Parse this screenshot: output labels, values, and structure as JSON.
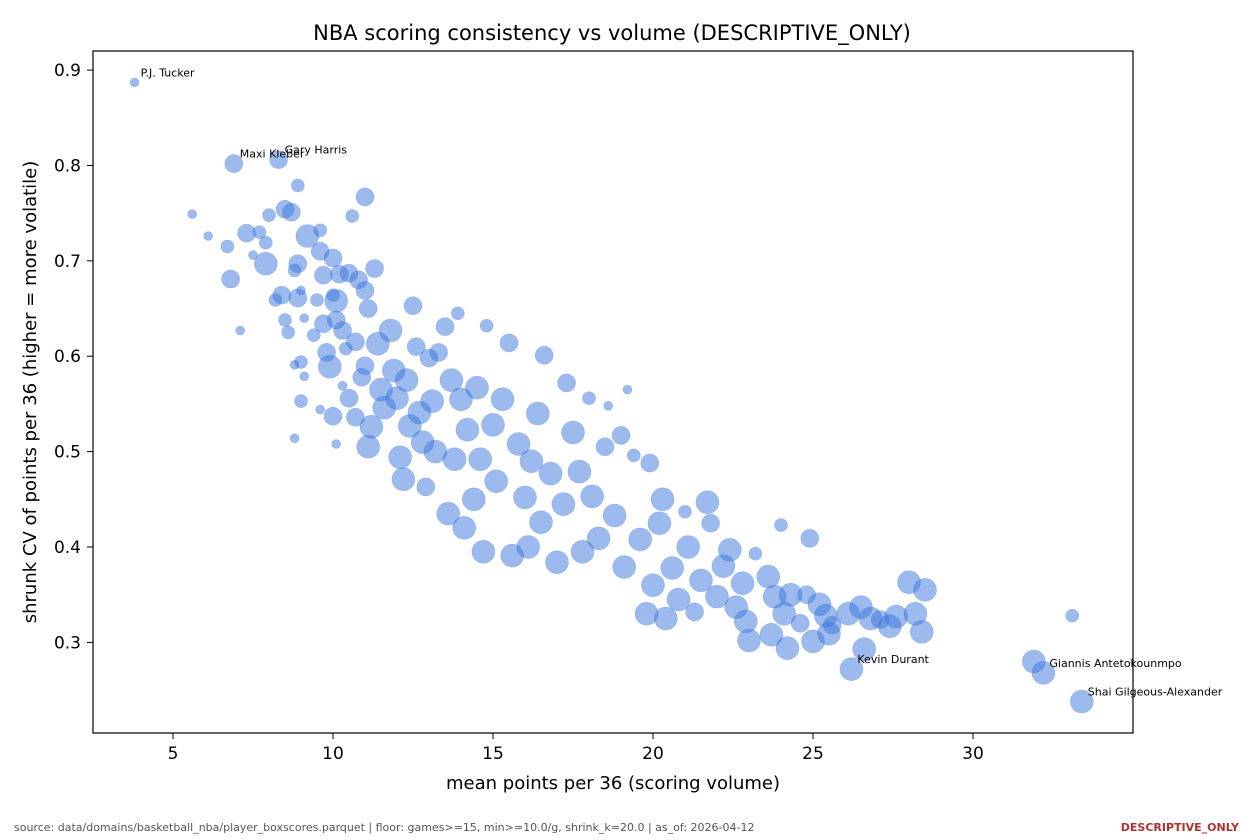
{
  "chart_data": {
    "type": "scatter",
    "title": "NBA scoring consistency vs volume (DESCRIPTIVE_ONLY)",
    "xlabel": "mean points per 36 (scoring volume)",
    "ylabel": "shrunk CV of points per 36 (higher = more volatile)",
    "xlim": [
      2.5,
      35
    ],
    "ylim": [
      0.205,
      0.92
    ],
    "xticks": [
      5,
      10,
      15,
      20,
      25,
      30
    ],
    "yticks": [
      0.3,
      0.4,
      0.5,
      0.6,
      0.7,
      0.8,
      0.9
    ],
    "grid": false,
    "marker_color": "#3a76db",
    "size_encodes": "marker area (unlabeled)",
    "points": [
      {
        "x": 3.8,
        "y": 0.887,
        "s": 1,
        "label": "P.J. Tucker"
      },
      {
        "x": 6.9,
        "y": 0.802,
        "s": 3,
        "label": "Maxi Kleber"
      },
      {
        "x": 8.3,
        "y": 0.806,
        "s": 3,
        "label": "Gary Harris"
      },
      {
        "x": 26.2,
        "y": 0.272,
        "s": 4,
        "label": "Kevin Durant"
      },
      {
        "x": 31.9,
        "y": 0.28,
        "s": 4,
        "label": ""
      },
      {
        "x": 32.2,
        "y": 0.268,
        "s": 4,
        "label": "Giannis Antetokounmpo"
      },
      {
        "x": 33.4,
        "y": 0.238,
        "s": 4,
        "label": "Shai Gilgeous-Alexander"
      },
      {
        "x": 33.1,
        "y": 0.328,
        "s": 2,
        "label": ""
      },
      {
        "x": 5.6,
        "y": 0.749,
        "s": 1,
        "label": ""
      },
      {
        "x": 6.1,
        "y": 0.726,
        "s": 1,
        "label": ""
      },
      {
        "x": 6.7,
        "y": 0.715,
        "s": 2,
        "label": ""
      },
      {
        "x": 6.8,
        "y": 0.681,
        "s": 3,
        "label": ""
      },
      {
        "x": 7.1,
        "y": 0.627,
        "s": 1,
        "label": ""
      },
      {
        "x": 7.3,
        "y": 0.729,
        "s": 3,
        "label": ""
      },
      {
        "x": 7.5,
        "y": 0.706,
        "s": 1,
        "label": ""
      },
      {
        "x": 7.7,
        "y": 0.73,
        "s": 2,
        "label": ""
      },
      {
        "x": 7.9,
        "y": 0.719,
        "s": 2,
        "label": ""
      },
      {
        "x": 8.0,
        "y": 0.748,
        "s": 2,
        "label": ""
      },
      {
        "x": 7.9,
        "y": 0.697,
        "s": 4,
        "label": ""
      },
      {
        "x": 8.2,
        "y": 0.659,
        "s": 2,
        "label": ""
      },
      {
        "x": 8.4,
        "y": 0.664,
        "s": 3,
        "label": ""
      },
      {
        "x": 8.5,
        "y": 0.754,
        "s": 3,
        "label": ""
      },
      {
        "x": 8.5,
        "y": 0.638,
        "s": 2,
        "label": ""
      },
      {
        "x": 8.6,
        "y": 0.625,
        "s": 2,
        "label": ""
      },
      {
        "x": 8.7,
        "y": 0.751,
        "s": 3,
        "label": ""
      },
      {
        "x": 8.8,
        "y": 0.69,
        "s": 2,
        "label": ""
      },
      {
        "x": 8.9,
        "y": 0.779,
        "s": 2,
        "label": ""
      },
      {
        "x": 8.9,
        "y": 0.697,
        "s": 3,
        "label": ""
      },
      {
        "x": 8.9,
        "y": 0.661,
        "s": 3,
        "label": ""
      },
      {
        "x": 9.0,
        "y": 0.669,
        "s": 1,
        "label": ""
      },
      {
        "x": 8.8,
        "y": 0.591,
        "s": 1,
        "label": ""
      },
      {
        "x": 9.0,
        "y": 0.594,
        "s": 2,
        "label": ""
      },
      {
        "x": 9.1,
        "y": 0.579,
        "s": 1,
        "label": ""
      },
      {
        "x": 9.1,
        "y": 0.64,
        "s": 1,
        "label": ""
      },
      {
        "x": 9.2,
        "y": 0.726,
        "s": 4,
        "label": ""
      },
      {
        "x": 9.0,
        "y": 0.553,
        "s": 2,
        "label": ""
      },
      {
        "x": 8.8,
        "y": 0.514,
        "s": 1,
        "label": ""
      },
      {
        "x": 9.4,
        "y": 0.622,
        "s": 2,
        "label": ""
      },
      {
        "x": 9.5,
        "y": 0.659,
        "s": 2,
        "label": ""
      },
      {
        "x": 9.6,
        "y": 0.732,
        "s": 2,
        "label": ""
      },
      {
        "x": 9.6,
        "y": 0.71,
        "s": 3,
        "label": ""
      },
      {
        "x": 9.7,
        "y": 0.685,
        "s": 3,
        "label": ""
      },
      {
        "x": 9.6,
        "y": 0.544,
        "s": 1,
        "label": ""
      },
      {
        "x": 9.7,
        "y": 0.634,
        "s": 3,
        "label": ""
      },
      {
        "x": 9.8,
        "y": 0.604,
        "s": 3,
        "label": ""
      },
      {
        "x": 9.9,
        "y": 0.589,
        "s": 4,
        "label": ""
      },
      {
        "x": 10.0,
        "y": 0.703,
        "s": 3,
        "label": ""
      },
      {
        "x": 10.0,
        "y": 0.664,
        "s": 2,
        "label": ""
      },
      {
        "x": 10.0,
        "y": 0.537,
        "s": 3,
        "label": ""
      },
      {
        "x": 10.1,
        "y": 0.658,
        "s": 4,
        "label": ""
      },
      {
        "x": 10.1,
        "y": 0.638,
        "s": 3,
        "label": ""
      },
      {
        "x": 10.1,
        "y": 0.508,
        "s": 1,
        "label": ""
      },
      {
        "x": 10.2,
        "y": 0.686,
        "s": 3,
        "label": ""
      },
      {
        "x": 10.3,
        "y": 0.627,
        "s": 3,
        "label": ""
      },
      {
        "x": 10.3,
        "y": 0.569,
        "s": 1,
        "label": ""
      },
      {
        "x": 10.4,
        "y": 0.608,
        "s": 2,
        "label": ""
      },
      {
        "x": 10.5,
        "y": 0.687,
        "s": 3,
        "label": ""
      },
      {
        "x": 10.6,
        "y": 0.747,
        "s": 2,
        "label": ""
      },
      {
        "x": 10.5,
        "y": 0.556,
        "s": 3,
        "label": ""
      },
      {
        "x": 10.7,
        "y": 0.615,
        "s": 3,
        "label": ""
      },
      {
        "x": 10.8,
        "y": 0.68,
        "s": 3,
        "label": ""
      },
      {
        "x": 10.7,
        "y": 0.536,
        "s": 3,
        "label": ""
      },
      {
        "x": 10.9,
        "y": 0.578,
        "s": 3,
        "label": ""
      },
      {
        "x": 11.0,
        "y": 0.767,
        "s": 3,
        "label": ""
      },
      {
        "x": 11.0,
        "y": 0.669,
        "s": 3,
        "label": ""
      },
      {
        "x": 11.1,
        "y": 0.65,
        "s": 3,
        "label": ""
      },
      {
        "x": 11.0,
        "y": 0.59,
        "s": 3,
        "label": ""
      },
      {
        "x": 11.2,
        "y": 0.526,
        "s": 4,
        "label": ""
      },
      {
        "x": 11.1,
        "y": 0.505,
        "s": 4,
        "label": ""
      },
      {
        "x": 11.3,
        "y": 0.692,
        "s": 3,
        "label": ""
      },
      {
        "x": 11.4,
        "y": 0.613,
        "s": 4,
        "label": ""
      },
      {
        "x": 11.5,
        "y": 0.565,
        "s": 4,
        "label": ""
      },
      {
        "x": 11.6,
        "y": 0.546,
        "s": 4,
        "label": ""
      },
      {
        "x": 11.8,
        "y": 0.627,
        "s": 4,
        "label": ""
      },
      {
        "x": 11.9,
        "y": 0.585,
        "s": 4,
        "label": ""
      },
      {
        "x": 12.0,
        "y": 0.556,
        "s": 4,
        "label": ""
      },
      {
        "x": 12.1,
        "y": 0.494,
        "s": 4,
        "label": ""
      },
      {
        "x": 12.2,
        "y": 0.471,
        "s": 4,
        "label": ""
      },
      {
        "x": 12.3,
        "y": 0.575,
        "s": 4,
        "label": ""
      },
      {
        "x": 12.4,
        "y": 0.527,
        "s": 4,
        "label": ""
      },
      {
        "x": 12.5,
        "y": 0.653,
        "s": 3,
        "label": ""
      },
      {
        "x": 12.6,
        "y": 0.61,
        "s": 3,
        "label": ""
      },
      {
        "x": 12.7,
        "y": 0.541,
        "s": 4,
        "label": ""
      },
      {
        "x": 12.8,
        "y": 0.51,
        "s": 4,
        "label": ""
      },
      {
        "x": 12.9,
        "y": 0.463,
        "s": 3,
        "label": ""
      },
      {
        "x": 13.0,
        "y": 0.598,
        "s": 3,
        "label": ""
      },
      {
        "x": 13.1,
        "y": 0.553,
        "s": 4,
        "label": ""
      },
      {
        "x": 13.2,
        "y": 0.5,
        "s": 4,
        "label": ""
      },
      {
        "x": 13.3,
        "y": 0.604,
        "s": 3,
        "label": ""
      },
      {
        "x": 13.5,
        "y": 0.631,
        "s": 3,
        "label": ""
      },
      {
        "x": 13.6,
        "y": 0.435,
        "s": 4,
        "label": ""
      },
      {
        "x": 13.7,
        "y": 0.575,
        "s": 4,
        "label": ""
      },
      {
        "x": 13.8,
        "y": 0.492,
        "s": 4,
        "label": ""
      },
      {
        "x": 13.9,
        "y": 0.645,
        "s": 2,
        "label": ""
      },
      {
        "x": 14.0,
        "y": 0.555,
        "s": 4,
        "label": ""
      },
      {
        "x": 14.1,
        "y": 0.42,
        "s": 4,
        "label": ""
      },
      {
        "x": 14.2,
        "y": 0.523,
        "s": 4,
        "label": ""
      },
      {
        "x": 14.4,
        "y": 0.45,
        "s": 4,
        "label": ""
      },
      {
        "x": 14.5,
        "y": 0.567,
        "s": 4,
        "label": ""
      },
      {
        "x": 14.6,
        "y": 0.492,
        "s": 4,
        "label": ""
      },
      {
        "x": 14.7,
        "y": 0.395,
        "s": 4,
        "label": ""
      },
      {
        "x": 14.8,
        "y": 0.632,
        "s": 2,
        "label": ""
      },
      {
        "x": 15.0,
        "y": 0.528,
        "s": 4,
        "label": ""
      },
      {
        "x": 15.1,
        "y": 0.469,
        "s": 4,
        "label": ""
      },
      {
        "x": 15.3,
        "y": 0.555,
        "s": 4,
        "label": ""
      },
      {
        "x": 15.5,
        "y": 0.614,
        "s": 3,
        "label": ""
      },
      {
        "x": 15.6,
        "y": 0.391,
        "s": 4,
        "label": ""
      },
      {
        "x": 15.8,
        "y": 0.508,
        "s": 4,
        "label": ""
      },
      {
        "x": 16.0,
        "y": 0.452,
        "s": 4,
        "label": ""
      },
      {
        "x": 16.1,
        "y": 0.4,
        "s": 4,
        "label": ""
      },
      {
        "x": 16.2,
        "y": 0.49,
        "s": 4,
        "label": ""
      },
      {
        "x": 16.4,
        "y": 0.54,
        "s": 4,
        "label": ""
      },
      {
        "x": 16.5,
        "y": 0.426,
        "s": 4,
        "label": ""
      },
      {
        "x": 16.6,
        "y": 0.601,
        "s": 3,
        "label": ""
      },
      {
        "x": 16.8,
        "y": 0.477,
        "s": 4,
        "label": ""
      },
      {
        "x": 17.0,
        "y": 0.384,
        "s": 4,
        "label": ""
      },
      {
        "x": 17.2,
        "y": 0.445,
        "s": 4,
        "label": ""
      },
      {
        "x": 17.3,
        "y": 0.572,
        "s": 3,
        "label": ""
      },
      {
        "x": 17.5,
        "y": 0.52,
        "s": 4,
        "label": ""
      },
      {
        "x": 17.7,
        "y": 0.479,
        "s": 4,
        "label": ""
      },
      {
        "x": 17.8,
        "y": 0.395,
        "s": 4,
        "label": ""
      },
      {
        "x": 18.0,
        "y": 0.556,
        "s": 2,
        "label": ""
      },
      {
        "x": 18.1,
        "y": 0.453,
        "s": 4,
        "label": ""
      },
      {
        "x": 18.3,
        "y": 0.409,
        "s": 4,
        "label": ""
      },
      {
        "x": 18.5,
        "y": 0.505,
        "s": 3,
        "label": ""
      },
      {
        "x": 18.6,
        "y": 0.548,
        "s": 1,
        "label": ""
      },
      {
        "x": 18.8,
        "y": 0.433,
        "s": 4,
        "label": ""
      },
      {
        "x": 19.0,
        "y": 0.517,
        "s": 3,
        "label": ""
      },
      {
        "x": 19.1,
        "y": 0.379,
        "s": 4,
        "label": ""
      },
      {
        "x": 19.2,
        "y": 0.565,
        "s": 1,
        "label": ""
      },
      {
        "x": 19.4,
        "y": 0.496,
        "s": 2,
        "label": ""
      },
      {
        "x": 19.6,
        "y": 0.408,
        "s": 4,
        "label": ""
      },
      {
        "x": 19.8,
        "y": 0.33,
        "s": 4,
        "label": ""
      },
      {
        "x": 19.9,
        "y": 0.488,
        "s": 3,
        "label": ""
      },
      {
        "x": 20.0,
        "y": 0.36,
        "s": 4,
        "label": ""
      },
      {
        "x": 20.2,
        "y": 0.425,
        "s": 4,
        "label": ""
      },
      {
        "x": 20.3,
        "y": 0.45,
        "s": 4,
        "label": ""
      },
      {
        "x": 20.4,
        "y": 0.325,
        "s": 4,
        "label": ""
      },
      {
        "x": 20.6,
        "y": 0.378,
        "s": 4,
        "label": ""
      },
      {
        "x": 20.8,
        "y": 0.345,
        "s": 4,
        "label": ""
      },
      {
        "x": 21.0,
        "y": 0.437,
        "s": 2,
        "label": ""
      },
      {
        "x": 21.1,
        "y": 0.4,
        "s": 4,
        "label": ""
      },
      {
        "x": 21.3,
        "y": 0.332,
        "s": 3,
        "label": ""
      },
      {
        "x": 21.5,
        "y": 0.365,
        "s": 4,
        "label": ""
      },
      {
        "x": 21.7,
        "y": 0.447,
        "s": 4,
        "label": ""
      },
      {
        "x": 21.8,
        "y": 0.425,
        "s": 3,
        "label": ""
      },
      {
        "x": 22.0,
        "y": 0.348,
        "s": 4,
        "label": ""
      },
      {
        "x": 22.2,
        "y": 0.38,
        "s": 4,
        "label": ""
      },
      {
        "x": 22.4,
        "y": 0.397,
        "s": 4,
        "label": ""
      },
      {
        "x": 22.6,
        "y": 0.337,
        "s": 4,
        "label": ""
      },
      {
        "x": 22.8,
        "y": 0.362,
        "s": 4,
        "label": ""
      },
      {
        "x": 22.9,
        "y": 0.322,
        "s": 4,
        "label": ""
      },
      {
        "x": 23.0,
        "y": 0.302,
        "s": 4,
        "label": ""
      },
      {
        "x": 23.2,
        "y": 0.393,
        "s": 2,
        "label": ""
      },
      {
        "x": 23.6,
        "y": 0.369,
        "s": 4,
        "label": ""
      },
      {
        "x": 23.7,
        "y": 0.308,
        "s": 4,
        "label": ""
      },
      {
        "x": 23.8,
        "y": 0.348,
        "s": 4,
        "label": ""
      },
      {
        "x": 24.0,
        "y": 0.423,
        "s": 2,
        "label": ""
      },
      {
        "x": 24.1,
        "y": 0.33,
        "s": 4,
        "label": ""
      },
      {
        "x": 24.2,
        "y": 0.294,
        "s": 4,
        "label": ""
      },
      {
        "x": 24.3,
        "y": 0.35,
        "s": 4,
        "label": ""
      },
      {
        "x": 24.6,
        "y": 0.32,
        "s": 3,
        "label": ""
      },
      {
        "x": 24.8,
        "y": 0.35,
        "s": 3,
        "label": ""
      },
      {
        "x": 24.9,
        "y": 0.409,
        "s": 3,
        "label": ""
      },
      {
        "x": 25.0,
        "y": 0.301,
        "s": 4,
        "label": ""
      },
      {
        "x": 25.2,
        "y": 0.34,
        "s": 4,
        "label": ""
      },
      {
        "x": 25.4,
        "y": 0.328,
        "s": 4,
        "label": ""
      },
      {
        "x": 25.5,
        "y": 0.309,
        "s": 4,
        "label": ""
      },
      {
        "x": 25.6,
        "y": 0.318,
        "s": 3,
        "label": ""
      },
      {
        "x": 26.1,
        "y": 0.33,
        "s": 4,
        "label": ""
      },
      {
        "x": 26.5,
        "y": 0.337,
        "s": 4,
        "label": ""
      },
      {
        "x": 26.6,
        "y": 0.293,
        "s": 4,
        "label": ""
      },
      {
        "x": 26.8,
        "y": 0.325,
        "s": 4,
        "label": ""
      },
      {
        "x": 27.1,
        "y": 0.324,
        "s": 3,
        "label": ""
      },
      {
        "x": 27.4,
        "y": 0.317,
        "s": 4,
        "label": ""
      },
      {
        "x": 27.6,
        "y": 0.327,
        "s": 4,
        "label": ""
      },
      {
        "x": 28.0,
        "y": 0.363,
        "s": 4,
        "label": ""
      },
      {
        "x": 28.2,
        "y": 0.33,
        "s": 4,
        "label": ""
      },
      {
        "x": 28.5,
        "y": 0.355,
        "s": 4,
        "label": ""
      },
      {
        "x": 28.4,
        "y": 0.311,
        "s": 4,
        "label": ""
      }
    ]
  },
  "footer": {
    "source": "source: data/domains/basketball_nba/player_boxscores.parquet  |  floor: games>=15, min>=10.0/g, shrink_k=20.0  |  as_of: 2026-04-12",
    "flag": "DESCRIPTIVE_ONLY"
  }
}
